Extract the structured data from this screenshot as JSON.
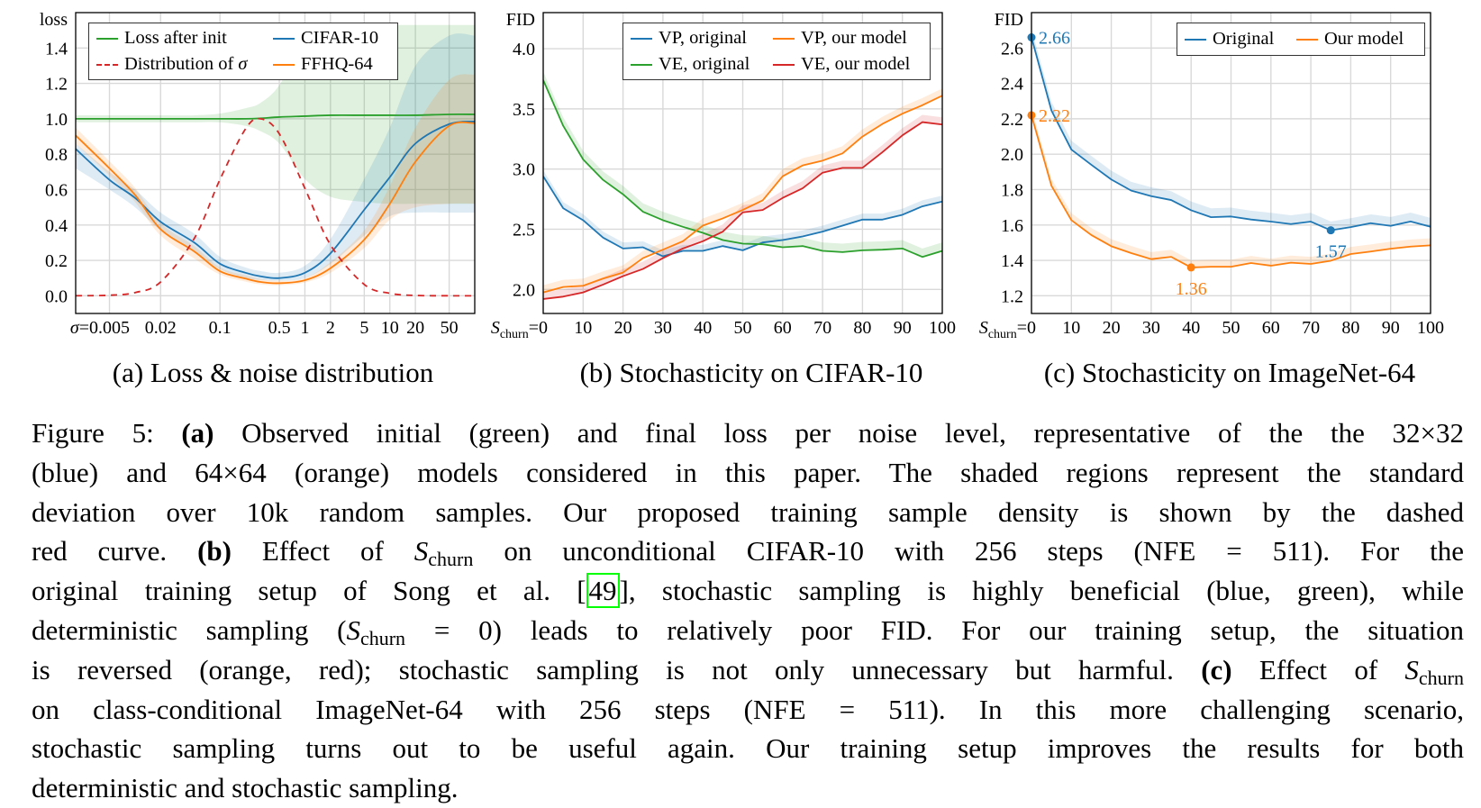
{
  "colors": {
    "blue": "#1f77b4",
    "orange": "#ff7f0e",
    "green": "#2ca02c",
    "red": "#d62728",
    "grid": "#d9d9d9",
    "link_box": "#00ff00"
  },
  "legends": {
    "a": [
      {
        "label": "Loss after init",
        "color": "#2ca02c",
        "style": "solid"
      },
      {
        "label": "CIFAR-10",
        "color": "#1f77b4",
        "style": "solid"
      },
      {
        "label_symbol": "Distribution of ",
        "label_greek": "σ",
        "color": "#d62728",
        "style": "dashed"
      },
      {
        "label": "FFHQ-64",
        "color": "#ff7f0e",
        "style": "solid"
      }
    ],
    "b": [
      {
        "label": "VP, original",
        "color": "#1f77b4",
        "style": "solid"
      },
      {
        "label": "VP, our model",
        "color": "#ff7f0e",
        "style": "solid"
      },
      {
        "label": "VE, original",
        "color": "#2ca02c",
        "style": "solid"
      },
      {
        "label": "VE, our model",
        "color": "#d62728",
        "style": "solid"
      }
    ],
    "c": [
      {
        "label": "Original",
        "color": "#1f77b4",
        "style": "solid"
      },
      {
        "label": "Our model",
        "color": "#ff7f0e",
        "style": "solid"
      }
    ]
  },
  "subcaptions": {
    "a": "(a) Loss & noise distribution",
    "b": "(b) Stochasticity on CIFAR-10",
    "c": "(c) Stochasticity on ImageNet-64"
  },
  "chart_data": [
    {
      "id": "a",
      "type": "line",
      "title": "(a) Loss & noise distribution",
      "ylabel": "loss",
      "xlabel_prefix": "σ=",
      "xscale": "log",
      "xlim": [
        0.002,
        100
      ],
      "ylim": [
        -0.1,
        1.6
      ],
      "grid": true,
      "legend_placement": "top-left",
      "xticks": [
        0.005,
        0.02,
        0.1,
        0.5,
        1,
        2,
        5,
        10,
        20,
        50
      ],
      "xtick_labels": [
        "0.005",
        "0.02",
        "0.1",
        "0.5",
        "1",
        "2",
        "5",
        "10",
        "20",
        "50"
      ],
      "yticks": [
        0,
        0.2,
        0.4,
        0.6,
        0.8,
        1.0,
        1.2,
        1.4
      ],
      "ytick_labels": [
        "0.0",
        "0.2",
        "0.4",
        "0.6",
        "0.8",
        "1.0",
        "1.2",
        "1.4"
      ],
      "x": [
        0.002,
        0.005,
        0.01,
        0.02,
        0.05,
        0.1,
        0.2,
        0.3,
        0.5,
        1,
        2,
        5,
        10,
        20,
        50,
        100
      ],
      "series": [
        {
          "name": "Loss after init",
          "color": "#2ca02c",
          "dash": false,
          "values": [
            1,
            1,
            1,
            1,
            1,
            1,
            1,
            1.003,
            1.01,
            1.015,
            1.02,
            1.02,
            1.02,
            1.02,
            1.025,
            1.025
          ],
          "lower": [
            0.98,
            0.98,
            0.98,
            0.98,
            0.98,
            0.98,
            0.96,
            0.93,
            0.86,
            0.66,
            0.56,
            0.53,
            0.52,
            0.52,
            0.52,
            0.52
          ],
          "upper": [
            1.02,
            1.02,
            1.02,
            1.02,
            1.02,
            1.03,
            1.06,
            1.09,
            1.19,
            1.45,
            1.52,
            1.53,
            1.53,
            1.53,
            1.53,
            1.53
          ]
        },
        {
          "name": "CIFAR-10",
          "color": "#1f77b4",
          "dash": false,
          "values": [
            0.83,
            0.655,
            0.553,
            0.418,
            0.3,
            0.181,
            0.13,
            0.11,
            0.1,
            0.13,
            0.24,
            0.486,
            0.67,
            0.86,
            0.97,
            0.985
          ],
          "lower": [
            0.72,
            0.6,
            0.5,
            0.37,
            0.25,
            0.15,
            0.1,
            0.09,
            0.085,
            0.1,
            0.18,
            0.34,
            0.45,
            0.47,
            0.47,
            0.47
          ],
          "upper": [
            0.86,
            0.7,
            0.6,
            0.47,
            0.35,
            0.22,
            0.16,
            0.14,
            0.13,
            0.17,
            0.32,
            0.66,
            0.95,
            1.3,
            1.47,
            1.47
          ]
        },
        {
          "name": "FFHQ-64",
          "color": "#ff7f0e",
          "dash": false,
          "values": [
            0.906,
            0.72,
            0.57,
            0.376,
            0.25,
            0.139,
            0.097,
            0.078,
            0.071,
            0.088,
            0.156,
            0.317,
            0.52,
            0.757,
            0.96,
            0.975
          ],
          "lower": [
            0.86,
            0.68,
            0.53,
            0.34,
            0.21,
            0.12,
            0.08,
            0.065,
            0.06,
            0.075,
            0.13,
            0.27,
            0.43,
            0.5,
            0.52,
            0.52
          ],
          "upper": [
            0.95,
            0.76,
            0.61,
            0.41,
            0.28,
            0.16,
            0.115,
            0.095,
            0.085,
            0.1,
            0.19,
            0.37,
            0.62,
            0.95,
            1.22,
            1.25
          ]
        },
        {
          "name": "Distribution of σ",
          "color": "#d62728",
          "dash": true,
          "values": [
            0.0002,
            0.003,
            0.018,
            0.078,
            0.325,
            0.657,
            0.943,
            1.0,
            0.915,
            0.607,
            0.288,
            0.064,
            0.014,
            0.002,
            0.0001,
            0.0
          ]
        }
      ]
    },
    {
      "id": "b",
      "type": "line",
      "title": "(b) Stochasticity on CIFAR-10",
      "ylabel": "FID",
      "xlabel_symbol": "S",
      "xlabel_sub": "churn",
      "xscale": "linear",
      "xlim": [
        0,
        100
      ],
      "ylim": [
        1.8,
        4.3
      ],
      "grid": true,
      "legend_placement": "top-right",
      "xticks": [
        0,
        10,
        20,
        30,
        40,
        50,
        60,
        70,
        80,
        90,
        100
      ],
      "xtick_labels": [
        "0",
        "10",
        "20",
        "30",
        "40",
        "50",
        "60",
        "70",
        "80",
        "90",
        "100"
      ],
      "yticks": [
        2.0,
        2.5,
        3.0,
        3.5,
        4.0
      ],
      "ytick_labels": [
        "2.0",
        "2.5",
        "3.0",
        "3.5",
        "4.0"
      ],
      "x": [
        0,
        5,
        10,
        15,
        20,
        25,
        30,
        35,
        40,
        45,
        50,
        55,
        60,
        65,
        70,
        75,
        80,
        85,
        90,
        95,
        100
      ],
      "series": [
        {
          "name": "VP, original",
          "color": "#1f77b4",
          "band": 0.05,
          "values": [
            2.94,
            2.675,
            2.575,
            2.43,
            2.34,
            2.35,
            2.275,
            2.32,
            2.32,
            2.36,
            2.325,
            2.39,
            2.41,
            2.44,
            2.48,
            2.53,
            2.58,
            2.58,
            2.62,
            2.69,
            2.73
          ]
        },
        {
          "name": "VE, original",
          "color": "#2ca02c",
          "band": 0.07,
          "values": [
            3.74,
            3.36,
            3.08,
            2.91,
            2.79,
            2.645,
            2.575,
            2.52,
            2.47,
            2.41,
            2.38,
            2.375,
            2.35,
            2.36,
            2.32,
            2.31,
            2.325,
            2.33,
            2.34,
            2.27,
            2.32
          ]
        },
        {
          "name": "VP, our model",
          "color": "#ff7f0e",
          "band": 0.06,
          "values": [
            1.975,
            2.02,
            2.03,
            2.09,
            2.14,
            2.26,
            2.33,
            2.4,
            2.53,
            2.59,
            2.66,
            2.74,
            2.94,
            3.03,
            3.07,
            3.13,
            3.27,
            3.375,
            3.46,
            3.53,
            3.61
          ]
        },
        {
          "name": "VE, our model",
          "color": "#d62728",
          "band": 0.06,
          "values": [
            1.92,
            1.94,
            1.975,
            2.04,
            2.11,
            2.17,
            2.26,
            2.34,
            2.4,
            2.48,
            2.64,
            2.66,
            2.76,
            2.84,
            2.97,
            3.01,
            3.01,
            3.14,
            3.28,
            3.39,
            3.37
          ]
        }
      ]
    },
    {
      "id": "c",
      "type": "line",
      "title": "(c) Stochasticity on ImageNet-64",
      "ylabel": "FID",
      "xlabel_symbol": "S",
      "xlabel_sub": "churn",
      "xscale": "linear",
      "xlim": [
        0,
        100
      ],
      "ylim": [
        1.1,
        2.8
      ],
      "grid": true,
      "legend_placement": "top-right",
      "xticks": [
        0,
        10,
        20,
        30,
        40,
        50,
        60,
        70,
        80,
        90,
        100
      ],
      "xtick_labels": [
        "0",
        "10",
        "20",
        "30",
        "40",
        "50",
        "60",
        "70",
        "80",
        "90",
        "100"
      ],
      "yticks": [
        1.2,
        1.4,
        1.6,
        1.8,
        2.0,
        2.2,
        2.4,
        2.6
      ],
      "ytick_labels": [
        "1.2",
        "1.4",
        "1.6",
        "1.8",
        "2.0",
        "2.2",
        "2.4",
        "2.6"
      ],
      "x": [
        0,
        5,
        10,
        15,
        20,
        25,
        30,
        35,
        40,
        45,
        50,
        55,
        60,
        65,
        70,
        75,
        80,
        85,
        90,
        95,
        100
      ],
      "series": [
        {
          "name": "Original",
          "color": "#1f77b4",
          "band": 0.05,
          "values": [
            2.66,
            2.247,
            2.026,
            1.94,
            1.857,
            1.794,
            1.763,
            1.741,
            1.683,
            1.644,
            1.648,
            1.631,
            1.619,
            1.605,
            1.619,
            1.57,
            1.588,
            1.61,
            1.595,
            1.62,
            1.59
          ]
        },
        {
          "name": "Our model",
          "color": "#ff7f0e",
          "band": 0.04,
          "values": [
            2.22,
            1.822,
            1.627,
            1.543,
            1.48,
            1.441,
            1.407,
            1.42,
            1.36,
            1.364,
            1.364,
            1.385,
            1.37,
            1.387,
            1.38,
            1.398,
            1.436,
            1.45,
            1.466,
            1.478,
            1.485
          ]
        }
      ],
      "annotations": [
        {
          "x": 0,
          "y": 2.66,
          "label": "2.66",
          "color": "#1f77b4",
          "pos": "right"
        },
        {
          "x": 0,
          "y": 2.22,
          "label": "2.22",
          "color": "#ff7f0e",
          "pos": "right"
        },
        {
          "x": 40,
          "y": 1.36,
          "label": "1.36",
          "color": "#ff7f0e",
          "pos": "below"
        },
        {
          "x": 75,
          "y": 1.57,
          "label": "1.57",
          "color": "#1f77b4",
          "pos": "below"
        }
      ]
    }
  ],
  "caption": {
    "lines": [
      [
        {
          "t": "Figure 5: "
        },
        {
          "b": "(a)"
        },
        {
          "t": " Observed initial (green) and final loss per noise level, representative of the the 32×32"
        }
      ],
      [
        {
          "t": "(blue) and 64×64 (orange) models considered in this paper. The shaded regions represent the standard"
        }
      ],
      [
        {
          "t": "deviation over 10k random samples. Our proposed training sample density is shown by the dashed"
        }
      ],
      [
        {
          "t": "red curve. "
        },
        {
          "b": "(b)"
        },
        {
          "t": " Effect of "
        },
        {
          "m": "S",
          "sub": "churn"
        },
        {
          "t": " on unconditional CIFAR-10 with 256 steps (NFE = 511). For the"
        }
      ],
      [
        {
          "t": "original training setup of Song et al. ["
        },
        {
          "l": "49"
        },
        {
          "t": "], stochastic sampling is highly beneficial (blue, green), while"
        }
      ],
      [
        {
          "t": "deterministic sampling ("
        },
        {
          "m": "S",
          "sub": "churn"
        },
        {
          "t": " = 0) leads to relatively poor FID. For our training setup, the situation"
        }
      ],
      [
        {
          "t": "is reversed (orange, red); stochastic sampling is not only unnecessary but harmful. "
        },
        {
          "b": "(c)"
        },
        {
          "t": " Effect of "
        },
        {
          "m": "S",
          "sub": "churn"
        }
      ],
      [
        {
          "t": "on class-conditional ImageNet-64 with 256 steps (NFE = 511). In this more challenging scenario,"
        }
      ],
      [
        {
          "t": "stochastic sampling turns out to be useful again. Our training setup improves the results for both"
        }
      ],
      [
        {
          "t": "deterministic and stochastic sampling."
        }
      ]
    ]
  }
}
